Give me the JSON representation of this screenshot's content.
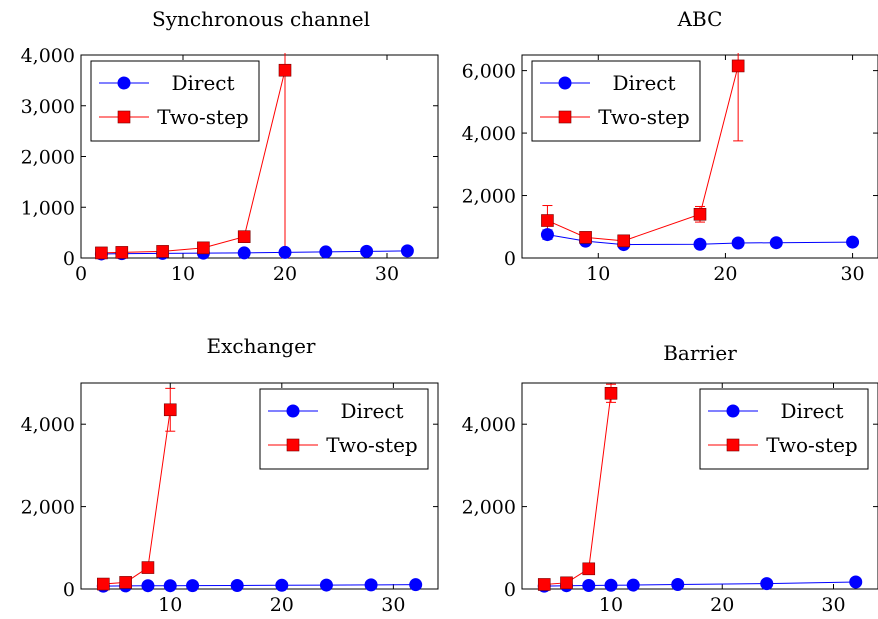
{
  "chart_data": [
    {
      "type": "line",
      "title": "Synchronous channel",
      "xlabel": "",
      "ylabel": "",
      "xlim": [
        0,
        35
      ],
      "ylim": [
        0,
        4000
      ],
      "xticks": [
        0,
        10,
        20,
        30
      ],
      "xtick_labels": [
        "0",
        "10",
        "20",
        "30"
      ],
      "yticks": [
        0,
        1000,
        2000,
        3000,
        4000
      ],
      "ytick_labels": [
        "0",
        "1,000",
        "2,000",
        "3,000",
        "4,000"
      ],
      "legend": "top-left",
      "grid": false,
      "series": [
        {
          "name": "Direct",
          "color": "#0000ff",
          "marker": "circle",
          "x": [
            2,
            4,
            8,
            12,
            16,
            20,
            24,
            28,
            32
          ],
          "y": [
            80,
            85,
            90,
            95,
            100,
            110,
            120,
            130,
            140
          ],
          "err": [
            0,
            0,
            0,
            0,
            0,
            0,
            0,
            0,
            0
          ]
        },
        {
          "name": "Two-step",
          "color": "#ff0000",
          "marker": "square",
          "x": [
            2,
            4,
            8,
            12,
            16,
            20
          ],
          "y": [
            100,
            110,
            130,
            200,
            420,
            3700
          ],
          "err": [
            0,
            0,
            0,
            0,
            0,
            3700
          ]
        }
      ]
    },
    {
      "type": "line",
      "title": "ABC",
      "xlabel": "",
      "ylabel": "",
      "xlim": [
        4,
        32
      ],
      "ylim": [
        0,
        6500
      ],
      "xticks": [
        10,
        20,
        30
      ],
      "xtick_labels": [
        "10",
        "20",
        "30"
      ],
      "yticks": [
        0,
        2000,
        4000,
        6000
      ],
      "ytick_labels": [
        "0",
        "2,000",
        "4,000",
        "6,000"
      ],
      "legend": "top-left",
      "grid": false,
      "series": [
        {
          "name": "Direct",
          "color": "#0000ff",
          "marker": "circle",
          "x": [
            6,
            9,
            12,
            18,
            21,
            24,
            30
          ],
          "y": [
            750,
            540,
            430,
            440,
            480,
            490,
            510
          ],
          "err": [
            150,
            0,
            0,
            0,
            0,
            0,
            0
          ]
        },
        {
          "name": "Two-step",
          "color": "#ff0000",
          "marker": "square",
          "x": [
            6,
            9,
            12,
            18,
            21
          ],
          "y": [
            1200,
            660,
            550,
            1400,
            6150
          ],
          "err": [
            480,
            0,
            0,
            250,
            2400
          ]
        }
      ]
    },
    {
      "type": "line",
      "title": "Exchanger",
      "xlabel": "",
      "ylabel": "",
      "xlim": [
        2,
        34
      ],
      "ylim": [
        0,
        5000
      ],
      "xticks": [
        10,
        20,
        30
      ],
      "xtick_labels": [
        "10",
        "20",
        "30"
      ],
      "yticks": [
        0,
        2000,
        4000
      ],
      "ytick_labels": [
        "0",
        "2,000",
        "4,000"
      ],
      "legend": "top-right",
      "grid": false,
      "series": [
        {
          "name": "Direct",
          "color": "#0000ff",
          "marker": "circle",
          "x": [
            4,
            6,
            8,
            10,
            12,
            16,
            20,
            24,
            28,
            32
          ],
          "y": [
            70,
            75,
            80,
            80,
            82,
            85,
            90,
            95,
            100,
            105
          ],
          "err": [
            0,
            0,
            0,
            0,
            0,
            0,
            0,
            0,
            0,
            0
          ]
        },
        {
          "name": "Two-step",
          "color": "#ff0000",
          "marker": "square",
          "x": [
            4,
            6,
            8,
            10
          ],
          "y": [
            120,
            160,
            520,
            4350
          ],
          "err": [
            0,
            0,
            0,
            520
          ]
        }
      ]
    },
    {
      "type": "line",
      "title": "Barrier",
      "xlabel": "",
      "ylabel": "",
      "xlim": [
        2,
        34
      ],
      "ylim": [
        0,
        5000
      ],
      "xticks": [
        10,
        20,
        30
      ],
      "xtick_labels": [
        "10",
        "20",
        "30"
      ],
      "yticks": [
        0,
        2000,
        4000
      ],
      "ytick_labels": [
        "0",
        "2,000",
        "4,000"
      ],
      "legend": "top-right",
      "grid": false,
      "series": [
        {
          "name": "Direct",
          "color": "#0000ff",
          "marker": "circle",
          "x": [
            4,
            6,
            8,
            10,
            12,
            16,
            24,
            32
          ],
          "y": [
            70,
            80,
            85,
            90,
            95,
            110,
            130,
            170
          ],
          "err": [
            0,
            0,
            0,
            0,
            0,
            0,
            0,
            0
          ]
        },
        {
          "name": "Two-step",
          "color": "#ff0000",
          "marker": "square",
          "x": [
            4,
            6,
            8,
            10
          ],
          "y": [
            110,
            150,
            490,
            4750
          ],
          "err": [
            0,
            0,
            0,
            220
          ]
        }
      ]
    }
  ]
}
